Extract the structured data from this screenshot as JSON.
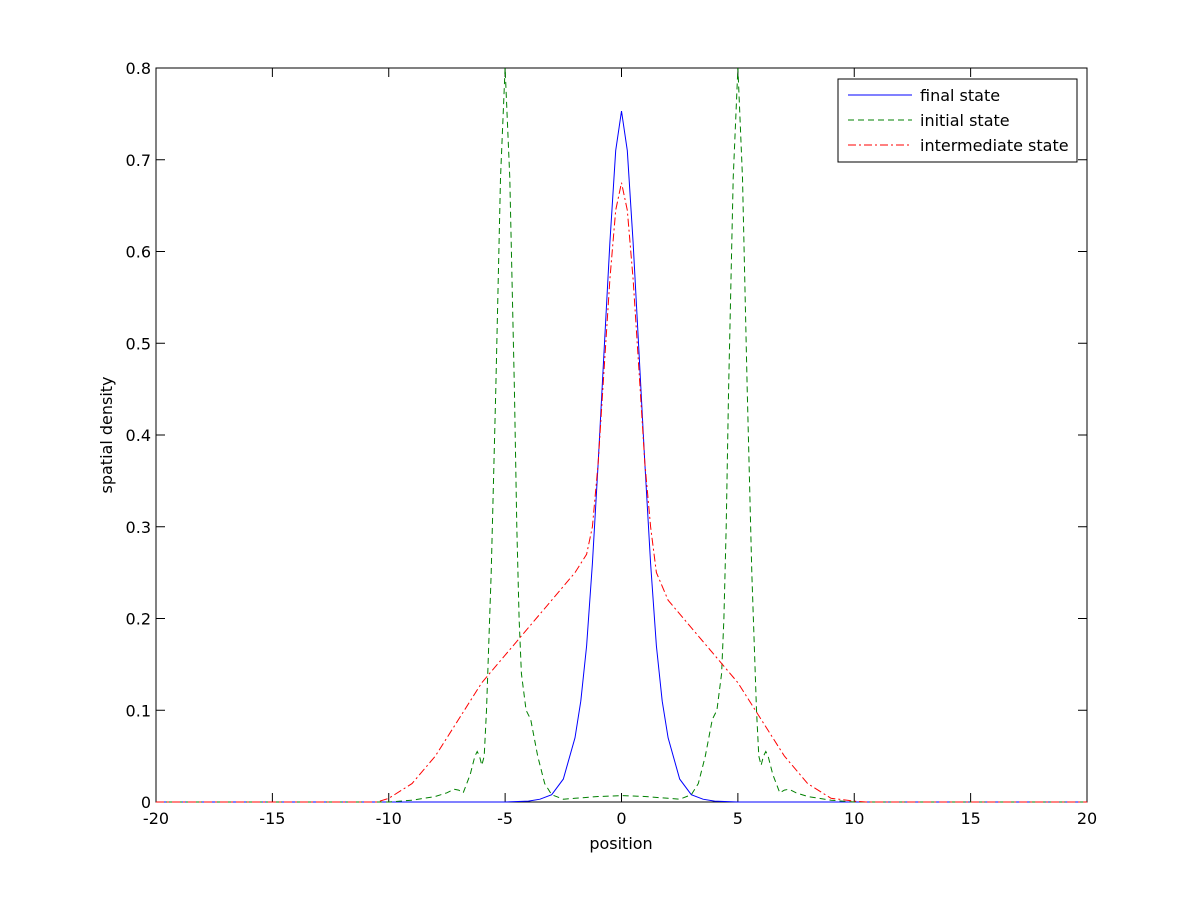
{
  "chart_data": {
    "type": "line",
    "title": "",
    "xlabel": "position",
    "ylabel": "spatial density",
    "xlim": [
      -20,
      20
    ],
    "ylim": [
      0,
      0.8
    ],
    "xticks": [
      -20,
      -15,
      -10,
      -5,
      0,
      5,
      10,
      15,
      20
    ],
    "yticks": [
      0,
      0.1,
      0.2,
      0.3,
      0.4,
      0.5,
      0.6,
      0.7,
      0.8
    ],
    "xtick_labels": [
      "-20",
      "-15",
      "-10",
      "-5",
      "0",
      "5",
      "10",
      "15",
      "20"
    ],
    "ytick_labels": [
      "0",
      "0.1",
      "0.2",
      "0.3",
      "0.4",
      "0.5",
      "0.6",
      "0.7",
      "0.8"
    ],
    "grid": false,
    "legend_position": "top-right",
    "series": [
      {
        "name": "final state",
        "color": "#0000ff",
        "style": "solid",
        "x": [
          -20,
          -10,
          -5,
          -4,
          -3.5,
          -3,
          -2.5,
          -2,
          -1.75,
          -1.5,
          -1.25,
          -1,
          -0.75,
          -0.5,
          -0.25,
          0,
          0.25,
          0.5,
          0.75,
          1,
          1.25,
          1.5,
          1.75,
          2,
          2.5,
          3,
          3.5,
          4,
          5,
          10,
          20
        ],
        "y": [
          0,
          0,
          0,
          0.001,
          0.003,
          0.008,
          0.025,
          0.07,
          0.11,
          0.17,
          0.26,
          0.37,
          0.49,
          0.61,
          0.71,
          0.753,
          0.71,
          0.61,
          0.49,
          0.37,
          0.26,
          0.17,
          0.11,
          0.07,
          0.025,
          0.008,
          0.003,
          0.001,
          0,
          0,
          0
        ]
      },
      {
        "name": "initial state",
        "color": "#008000",
        "style": "dashed",
        "x": [
          -20,
          -10,
          -9,
          -8,
          -7.5,
          -7.2,
          -7,
          -6.8,
          -6.5,
          -6.3,
          -6.2,
          -6.1,
          -6,
          -5.9,
          -5.8,
          -5.6,
          -5.4,
          -5.2,
          -5,
          -4.8,
          -4.6,
          -4.5,
          -4.4,
          -4.3,
          -4.1,
          -3.9,
          -3.6,
          -3.3,
          -3,
          -2.5,
          -2,
          -1,
          0,
          1,
          2,
          2.5,
          3,
          3.3,
          3.6,
          3.9,
          4.1,
          4.3,
          4.4,
          4.5,
          4.6,
          4.8,
          5,
          5.2,
          5.4,
          5.6,
          5.8,
          5.9,
          6,
          6.1,
          6.2,
          6.3,
          6.5,
          6.8,
          7,
          7.2,
          7.5,
          8,
          9,
          10,
          20
        ],
        "y": [
          0,
          0,
          0.002,
          0.006,
          0.01,
          0.014,
          0.013,
          0.01,
          0.03,
          0.05,
          0.055,
          0.05,
          0.04,
          0.05,
          0.1,
          0.25,
          0.45,
          0.68,
          0.8,
          0.68,
          0.45,
          0.3,
          0.2,
          0.14,
          0.1,
          0.09,
          0.05,
          0.02,
          0.008,
          0.003,
          0.004,
          0.006,
          0.007,
          0.006,
          0.004,
          0.003,
          0.008,
          0.02,
          0.05,
          0.09,
          0.1,
          0.14,
          0.2,
          0.3,
          0.45,
          0.68,
          0.8,
          0.68,
          0.45,
          0.25,
          0.1,
          0.05,
          0.04,
          0.05,
          0.055,
          0.05,
          0.03,
          0.01,
          0.013,
          0.014,
          0.01,
          0.006,
          0.002,
          0,
          0
        ]
      },
      {
        "name": "intermediate state",
        "color": "#ff0000",
        "style": "dashdot",
        "x": [
          -20,
          -10.5,
          -10,
          -9,
          -8,
          -7,
          -6,
          -5,
          -4,
          -3,
          -2,
          -1.5,
          -1.25,
          -1,
          -0.75,
          -0.5,
          -0.25,
          0,
          0.25,
          0.5,
          0.75,
          1,
          1.25,
          1.5,
          2,
          3,
          4,
          5,
          6,
          7,
          8,
          9,
          10,
          10.5,
          20
        ],
        "y": [
          0,
          0,
          0.004,
          0.02,
          0.05,
          0.09,
          0.13,
          0.16,
          0.19,
          0.22,
          0.25,
          0.27,
          0.3,
          0.37,
          0.47,
          0.57,
          0.645,
          0.675,
          0.645,
          0.57,
          0.47,
          0.37,
          0.3,
          0.25,
          0.22,
          0.19,
          0.16,
          0.13,
          0.09,
          0.05,
          0.02,
          0.004,
          0.001,
          0,
          0
        ]
      }
    ]
  }
}
